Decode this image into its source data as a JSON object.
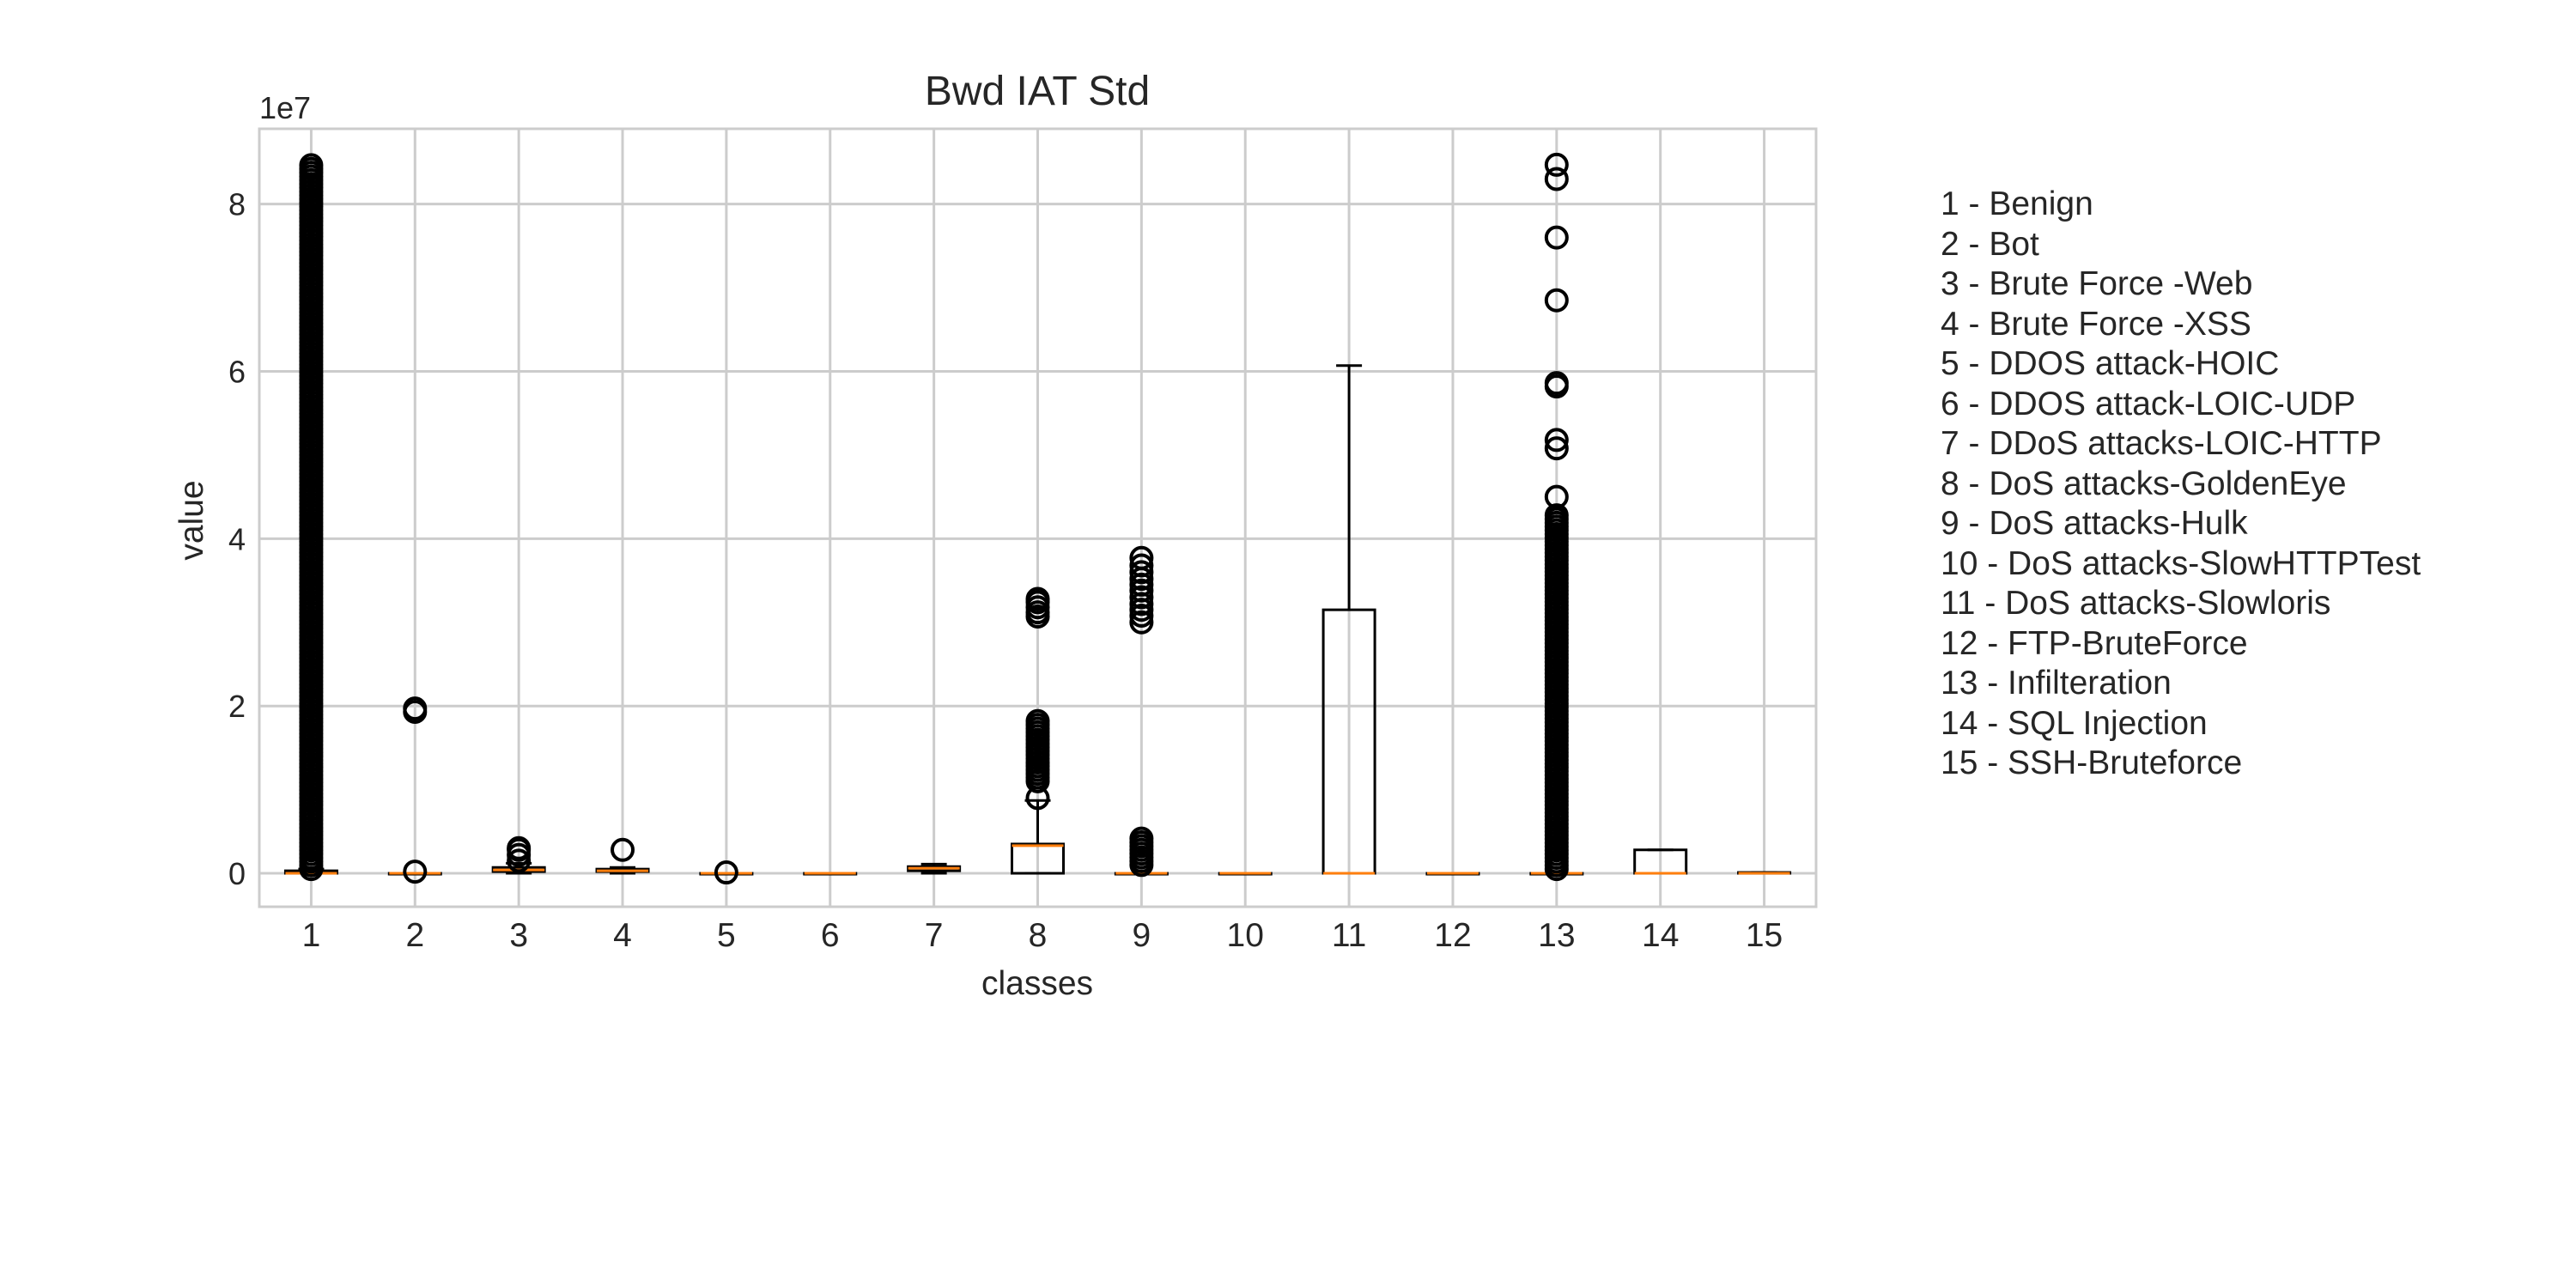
{
  "chart_data": {
    "type": "box",
    "title": "Bwd IAT Std",
    "xlabel": "classes",
    "ylabel": "value",
    "y_offset_label": "1e7",
    "y_scale_factor": 10000000,
    "ylim": [
      -0.4,
      8.9
    ],
    "yticks": [
      0,
      2,
      4,
      6,
      8
    ],
    "grid": true,
    "categories": [
      "1",
      "2",
      "3",
      "4",
      "5",
      "6",
      "7",
      "8",
      "9",
      "10",
      "11",
      "12",
      "13",
      "14",
      "15"
    ],
    "boxes": [
      {
        "label": "1",
        "q1": 0,
        "median": 0,
        "q3": 0.03,
        "whisker_low": 0,
        "whisker_high": 0.05,
        "outliers_range": [
          0.05,
          8.5
        ],
        "outliers": []
      },
      {
        "label": "2",
        "q1": 0,
        "median": 0,
        "q3": 0,
        "whisker_low": 0,
        "whisker_high": 0,
        "outliers": [
          0.02,
          1.93,
          1.97
        ]
      },
      {
        "label": "3",
        "q1": 0.02,
        "median": 0.04,
        "q3": 0.07,
        "whisker_low": 0,
        "whisker_high": 0.12,
        "outliers": [
          0.15,
          0.22,
          0.28,
          0.3
        ]
      },
      {
        "label": "4",
        "q1": 0.02,
        "median": 0.03,
        "q3": 0.05,
        "whisker_low": 0,
        "whisker_high": 0.07,
        "outliers": [
          0.28
        ]
      },
      {
        "label": "5",
        "q1": 0,
        "median": 0,
        "q3": 0,
        "whisker_low": 0,
        "whisker_high": 0,
        "outliers": [
          0.01
        ]
      },
      {
        "label": "6",
        "q1": 0,
        "median": 0,
        "q3": 0,
        "whisker_low": 0,
        "whisker_high": 0,
        "outliers": []
      },
      {
        "label": "7",
        "q1": 0.03,
        "median": 0.06,
        "q3": 0.08,
        "whisker_low": 0,
        "whisker_high": 0.11,
        "outliers": []
      },
      {
        "label": "8",
        "q1": 0,
        "median": 0.33,
        "q3": 0.35,
        "whisker_low": 0,
        "whisker_high": 0.87,
        "outliers_range": [
          1.1,
          1.85
        ],
        "outliers": [
          0.9,
          3.07,
          3.12,
          3.18,
          3.24,
          3.28
        ]
      },
      {
        "label": "9",
        "q1": 0,
        "median": 0,
        "q3": 0,
        "whisker_low": 0,
        "whisker_high": 0,
        "outliers_range": [
          0.1,
          0.45
        ],
        "outliers": [
          3.0,
          3.08,
          3.15,
          3.22,
          3.3,
          3.38,
          3.45,
          3.52,
          3.6,
          3.68,
          3.77
        ]
      },
      {
        "label": "10",
        "q1": 0,
        "median": 0,
        "q3": 0,
        "whisker_low": 0,
        "whisker_high": 0,
        "outliers": []
      },
      {
        "label": "11",
        "q1": 0,
        "median": 0,
        "q3": 3.15,
        "whisker_low": 0,
        "whisker_high": 6.07,
        "outliers": []
      },
      {
        "label": "12",
        "q1": 0,
        "median": 0,
        "q3": 0,
        "whisker_low": 0,
        "whisker_high": 0,
        "outliers": []
      },
      {
        "label": "13",
        "q1": 0,
        "median": 0,
        "q3": 0,
        "whisker_low": 0,
        "whisker_high": 0,
        "outliers_range": [
          0.05,
          4.3
        ],
        "outliers": [
          4.5,
          5.08,
          5.18,
          5.82,
          5.86,
          6.85,
          7.6,
          8.3,
          8.47
        ]
      },
      {
        "label": "14",
        "q1": 0,
        "median": 0,
        "q3": 0.28,
        "whisker_low": 0,
        "whisker_high": 0.28,
        "outliers": []
      },
      {
        "label": "15",
        "q1": 0,
        "median": 0,
        "q3": 0.01,
        "whisker_low": 0,
        "whisker_high": 0.01,
        "outliers": []
      }
    ],
    "legend": [
      "1 - Benign",
      "2 - Bot",
      "3 - Brute Force -Web",
      "4 - Brute Force -XSS",
      "5 - DDOS attack-HOIC",
      "6 - DDOS attack-LOIC-UDP",
      "7 - DDoS attacks-LOIC-HTTP",
      "8 - DoS attacks-GoldenEye",
      "9 - DoS attacks-Hulk",
      "10 - DoS attacks-SlowHTTPTest",
      "11 - DoS attacks-Slowloris",
      "12 - FTP-BruteForce",
      "13 - Infilteration",
      "14 - SQL Injection",
      "15 - SSH-Bruteforce"
    ],
    "colors": {
      "box": "#000000",
      "median": "#ff7f0e",
      "grid": "#cccccc",
      "frame": "#cccccc",
      "text": "#262626"
    }
  }
}
